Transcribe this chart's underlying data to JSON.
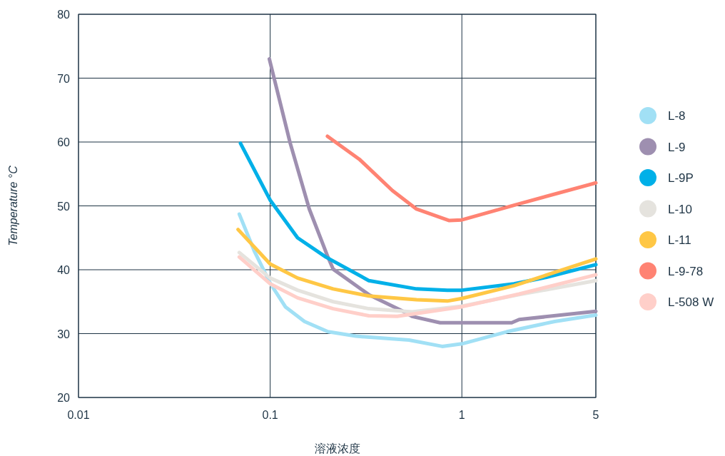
{
  "chart_data": {
    "type": "line",
    "xlabel": "溶液浓度",
    "ylabel": "Temperature °C",
    "log": "x",
    "xlim": [
      0.01,
      5
    ],
    "xticks": [
      0.01,
      0.1,
      1,
      5
    ],
    "ylim": [
      20,
      80
    ],
    "yticks": [
      20,
      30,
      40,
      50,
      60,
      70,
      80
    ],
    "grid": true,
    "legend": "right",
    "line_style": "solid",
    "series": [
      {
        "name": "L-8",
        "color": "#a1e0f5",
        "x": [
          0.069,
          0.083,
          0.1,
          0.12,
          0.151,
          0.2,
          0.28,
          0.53,
          0.79,
          1,
          1.72,
          3.05,
          5
        ],
        "values": [
          48.7,
          42.8,
          37.9,
          34.2,
          31.9,
          30.3,
          29.6,
          29.0,
          28.0,
          28.4,
          30.3,
          31.9,
          32.9
        ]
      },
      {
        "name": "L-9",
        "color": "#9e8fb0",
        "x": [
          0.099,
          0.127,
          0.16,
          0.2,
          0.213,
          0.327,
          0.5,
          0.55,
          0.77,
          1.82,
          1.99,
          5
        ],
        "values": [
          73.0,
          59.9,
          49.5,
          42.0,
          40.1,
          36.1,
          33.4,
          32.7,
          31.7,
          31.7,
          32.2,
          33.5
        ]
      },
      {
        "name": "L-9P",
        "color": "#00b0e8",
        "x": [
          0.07,
          0.1,
          0.139,
          0.195,
          0.327,
          0.58,
          0.84,
          1,
          1.87,
          2.74,
          5
        ],
        "values": [
          59.8,
          50.9,
          45.0,
          42.0,
          38.3,
          37.0,
          36.8,
          36.8,
          37.8,
          38.8,
          40.8
        ]
      },
      {
        "name": "L-10",
        "color": "#e5e3de",
        "x": [
          0.069,
          0.1,
          0.139,
          0.213,
          0.327,
          0.55,
          1,
          1.99,
          5
        ],
        "values": [
          42.7,
          38.7,
          36.8,
          35.0,
          33.9,
          33.4,
          34.3,
          36.1,
          38.3
        ]
      },
      {
        "name": "L-11",
        "color": "#ffc745",
        "x": [
          0.068,
          0.1,
          0.139,
          0.213,
          0.327,
          0.58,
          0.84,
          1,
          1.87,
          5
        ],
        "values": [
          46.3,
          40.9,
          38.7,
          37.0,
          35.9,
          35.3,
          35.1,
          35.5,
          37.5,
          41.7
        ]
      },
      {
        "name": "L-9-78",
        "color": "#ff8373",
        "x": [
          0.199,
          0.292,
          0.434,
          0.58,
          0.86,
          1,
          1.87,
          5
        ],
        "values": [
          60.9,
          57.3,
          52.4,
          49.5,
          47.7,
          47.8,
          50.1,
          53.6
        ]
      },
      {
        "name": "L-508 W",
        "color": "#ffcfc9",
        "x": [
          0.069,
          0.1,
          0.139,
          0.213,
          0.327,
          0.46,
          1,
          1.99,
          5
        ],
        "values": [
          42.0,
          37.8,
          35.6,
          33.9,
          32.8,
          32.7,
          34.2,
          36.2,
          39.2
        ]
      }
    ]
  }
}
